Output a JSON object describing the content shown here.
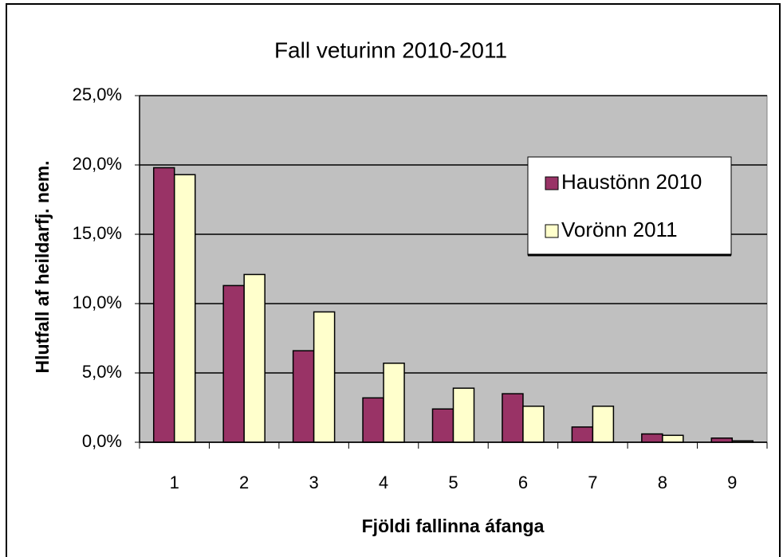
{
  "chart_data": {
    "type": "bar",
    "title": "Fall veturinn 2010-2011",
    "x_label": "Fjöldi fallinna áfanga",
    "y_label": "Hlutfall af heildarfj. nem.",
    "categories": [
      "1",
      "2",
      "3",
      "4",
      "5",
      "6",
      "7",
      "8",
      "9"
    ],
    "series": [
      {
        "name": "Haustönn 2010",
        "color": "#993366",
        "values": [
          19.8,
          11.3,
          6.6,
          3.2,
          2.4,
          3.5,
          1.1,
          0.6,
          0.3
        ]
      },
      {
        "name": "Vorönn 2011",
        "color": "#ffffcc",
        "values": [
          19.3,
          12.1,
          9.4,
          5.7,
          3.9,
          2.6,
          2.6,
          0.5,
          0.1
        ]
      }
    ],
    "ylim": [
      0,
      25
    ],
    "yticks": [
      {
        "value": 0,
        "label": "0,0%"
      },
      {
        "value": 5,
        "label": "5,0%"
      },
      {
        "value": 10,
        "label": "10,0%"
      },
      {
        "value": 15,
        "label": "15,0%"
      },
      {
        "value": 20,
        "label": "20,0%"
      },
      {
        "value": 25,
        "label": "25,0%"
      }
    ],
    "grid": true,
    "legend": "upper right"
  }
}
